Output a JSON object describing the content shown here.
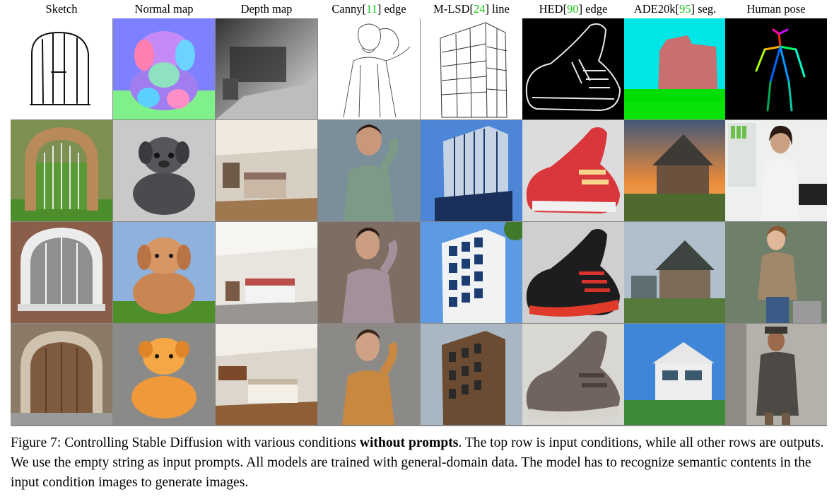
{
  "headers": [
    {
      "pre": "Sketch",
      "cite": "",
      "post": ""
    },
    {
      "pre": "Normal map",
      "cite": "",
      "post": ""
    },
    {
      "pre": "Depth map",
      "cite": "",
      "post": ""
    },
    {
      "pre": "Canny[",
      "cite": "11",
      "post": "] edge"
    },
    {
      "pre": "M-LSD[",
      "cite": "24",
      "post": "] line"
    },
    {
      "pre": "HED[",
      "cite": "90",
      "post": "] edge"
    },
    {
      "pre": "ADE20k[",
      "cite": "95",
      "post": "] seg."
    },
    {
      "pre": "Human pose",
      "cite": "",
      "post": ""
    }
  ],
  "rows": [
    {
      "kind": "input-conditions"
    },
    {
      "kind": "output-1"
    },
    {
      "kind": "output-2"
    },
    {
      "kind": "output-3"
    }
  ],
  "caption": {
    "part1": "Figure 7: Controlling Stable Diffusion with various conditions ",
    "bold": "without prompts",
    "part2": ". The top row is input conditions, while all other rows are outputs. We use the empty string as input prompts. All models are trained with general-domain data. The model has to recognize semantic contents in the input condition images to generate images."
  },
  "colors": {
    "citation": "#19c419",
    "grid_line": "#888888"
  }
}
